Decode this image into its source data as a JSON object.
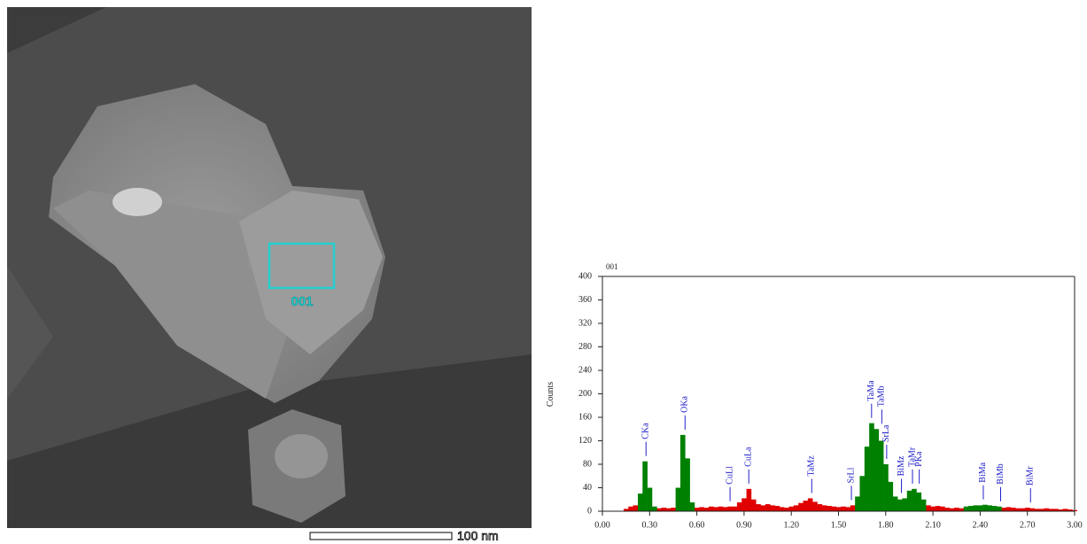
{
  "image": {
    "region_label": "001",
    "scale_label": "100 nm"
  },
  "chart_data": {
    "type": "bar",
    "title": "001",
    "ylabel": "Counts",
    "xlim": [
      0,
      3
    ],
    "ylim": [
      0,
      400
    ],
    "xticks": [
      {
        "value": 0,
        "label": "0.00"
      },
      {
        "value": 0.3,
        "label": "0.30"
      },
      {
        "value": 0.6,
        "label": "0.60"
      },
      {
        "value": 0.9,
        "label": "0.90"
      },
      {
        "value": 1.2,
        "label": "1.20"
      },
      {
        "value": 1.5,
        "label": "1.50"
      },
      {
        "value": 1.8,
        "label": "1.80"
      },
      {
        "value": 2.1,
        "label": "2.10"
      },
      {
        "value": 2.4,
        "label": "2.40"
      },
      {
        "value": 2.7,
        "label": "2.70"
      },
      {
        "value": 3,
        "label": "3.00"
      }
    ],
    "yticks": [
      0,
      40,
      80,
      120,
      160,
      200,
      240,
      280,
      320,
      360,
      400
    ],
    "x": [
      0.12,
      0.15,
      0.18,
      0.21,
      0.24,
      0.27,
      0.3,
      0.33,
      0.36,
      0.39,
      0.42,
      0.45,
      0.48,
      0.51,
      0.54,
      0.57,
      0.6,
      0.63,
      0.66,
      0.69,
      0.72,
      0.75,
      0.78,
      0.81,
      0.84,
      0.87,
      0.9,
      0.93,
      0.96,
      0.99,
      1.02,
      1.05,
      1.08,
      1.11,
      1.14,
      1.17,
      1.2,
      1.23,
      1.26,
      1.29,
      1.32,
      1.35,
      1.38,
      1.41,
      1.44,
      1.47,
      1.5,
      1.53,
      1.56,
      1.59,
      1.62,
      1.65,
      1.68,
      1.71,
      1.74,
      1.77,
      1.8,
      1.83,
      1.86,
      1.89,
      1.92,
      1.95,
      1.98,
      2.01,
      2.04,
      2.07,
      2.1,
      2.13,
      2.16,
      2.19,
      2.22,
      2.25,
      2.28,
      2.31,
      2.34,
      2.37,
      2.4,
      2.43,
      2.46,
      2.49,
      2.52,
      2.55,
      2.58,
      2.61,
      2.64,
      2.67,
      2.7,
      2.73,
      2.76,
      2.79,
      2.82,
      2.85,
      2.88,
      2.91,
      2.94,
      2.97,
      3.0
    ],
    "series": [
      {
        "color": "#e00000",
        "values": [
          0,
          4,
          8,
          10,
          null,
          null,
          null,
          null,
          5,
          6,
          5,
          6,
          null,
          null,
          null,
          null,
          6,
          7,
          6,
          8,
          7,
          8,
          7,
          8,
          8,
          15,
          22,
          38,
          20,
          12,
          10,
          12,
          10,
          9,
          7,
          6,
          8,
          10,
          14,
          18,
          22,
          16,
          12,
          10,
          9,
          8,
          7,
          8,
          7,
          10,
          null,
          null,
          null,
          null,
          null,
          null,
          null,
          null,
          null,
          null,
          null,
          null,
          null,
          null,
          null,
          10,
          8,
          9,
          8,
          6,
          5,
          6,
          5,
          null,
          null,
          null,
          null,
          null,
          null,
          null,
          null,
          6,
          7,
          6,
          5,
          5,
          6,
          5,
          4,
          4,
          5,
          4,
          4,
          3,
          4,
          3,
          2
        ]
      },
      {
        "color": "#008000",
        "values": [
          null,
          null,
          null,
          null,
          30,
          85,
          40,
          8,
          null,
          null,
          null,
          null,
          40,
          130,
          90,
          15,
          null,
          null,
          null,
          null,
          null,
          null,
          null,
          null,
          null,
          null,
          null,
          null,
          null,
          null,
          null,
          null,
          null,
          null,
          null,
          null,
          null,
          null,
          null,
          null,
          null,
          null,
          null,
          null,
          null,
          null,
          null,
          null,
          null,
          null,
          25,
          60,
          110,
          150,
          140,
          120,
          80,
          50,
          25,
          20,
          22,
          35,
          38,
          32,
          20,
          null,
          null,
          null,
          null,
          null,
          null,
          null,
          null,
          8,
          9,
          10,
          10,
          11,
          10,
          9,
          8,
          null,
          null,
          null,
          null,
          null,
          null,
          null,
          null,
          null,
          null,
          null,
          null,
          null,
          null,
          null,
          null
        ]
      }
    ],
    "annotations": [
      {
        "text": "CKa",
        "x": 0.277
      },
      {
        "text": "OKa",
        "x": 0.525
      },
      {
        "text": "CuLl",
        "x": 0.811
      },
      {
        "text": "CuLa",
        "x": 0.93
      },
      {
        "text": "TaMz",
        "x": 1.33
      },
      {
        "text": "SrLl",
        "x": 1.582
      },
      {
        "text": "TaMa",
        "x": 1.71
      },
      {
        "text": "TaMb",
        "x": 1.775
      },
      {
        "text": "SrLa",
        "x": 1.806
      },
      {
        "text": "BiMz",
        "x": 1.9
      },
      {
        "text": "TaMr",
        "x": 1.97
      },
      {
        "text": "PKa",
        "x": 2.013
      },
      {
        "text": "BiMa",
        "x": 2.42
      },
      {
        "text": "BiMb",
        "x": 2.53
      },
      {
        "text": "BiMr",
        "x": 2.72
      }
    ],
    "annotation_color": "#2020c8"
  }
}
